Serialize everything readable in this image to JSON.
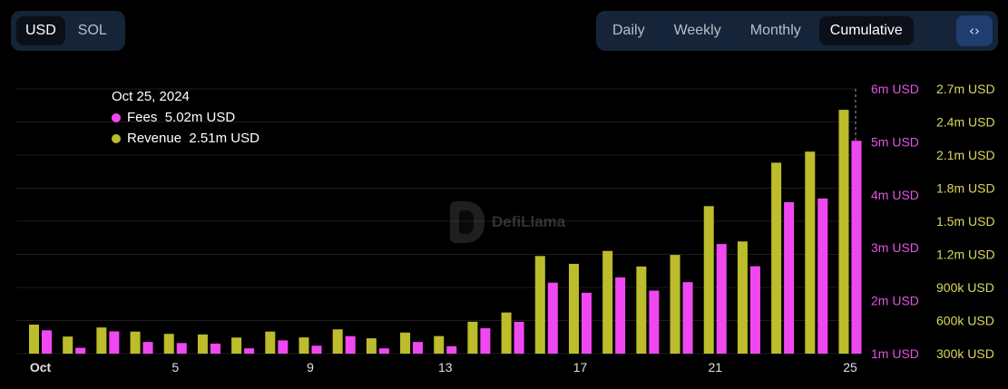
{
  "currency_toggle": {
    "options": [
      "USD",
      "SOL"
    ],
    "active": "USD"
  },
  "period_toggle": {
    "options": [
      "Daily",
      "Weekly",
      "Monthly",
      "Cumulative"
    ],
    "active": "Cumulative"
  },
  "embed_icon": "code-icon",
  "tooltip": {
    "date": "Oct 25, 2024",
    "fees_label": "Fees",
    "fees_value": "5.02m USD",
    "revenue_label": "Revenue",
    "revenue_value": "2.51m USD"
  },
  "watermark": {
    "text": "DefiLlama"
  },
  "colors": {
    "fees": "#f048f0",
    "revenue": "#bcbc2c",
    "background": "#000000",
    "grid": "#1c1c1c"
  },
  "chart_data": {
    "type": "bar",
    "categories": [
      "Oct 1",
      "Oct 2",
      "Oct 3",
      "Oct 4",
      "Oct 5",
      "Oct 6",
      "Oct 7",
      "Oct 8",
      "Oct 9",
      "Oct 10",
      "Oct 11",
      "Oct 12",
      "Oct 13",
      "Oct 14",
      "Oct 15",
      "Oct 16",
      "Oct 17",
      "Oct 18",
      "Oct 19",
      "Oct 20",
      "Oct 21",
      "Oct 22",
      "Oct 23",
      "Oct 24",
      "Oct 25"
    ],
    "x_tick_labels": [
      {
        "index": 1,
        "label": "Oct",
        "bold": true
      },
      {
        "index": 5,
        "label": "5"
      },
      {
        "index": 9,
        "label": "9"
      },
      {
        "index": 13,
        "label": "13"
      },
      {
        "index": 17,
        "label": "17"
      },
      {
        "index": 21,
        "label": "21"
      },
      {
        "index": 25,
        "label": "25"
      }
    ],
    "series": [
      {
        "name": "Fees",
        "color": "#f048f0",
        "axis": "left",
        "values": [
          1.44,
          1.11,
          1.42,
          1.22,
          1.2,
          1.19,
          1.1,
          1.25,
          1.15,
          1.33,
          1.1,
          1.22,
          1.14,
          1.48,
          1.6,
          2.34,
          2.15,
          2.44,
          2.19,
          2.35,
          3.07,
          2.65,
          3.86,
          3.93,
          5.02
        ]
      },
      {
        "name": "Revenue",
        "color": "#bcbc2c",
        "axis": "right",
        "values": [
          0.563,
          0.455,
          0.537,
          0.5,
          0.479,
          0.474,
          0.446,
          0.5,
          0.447,
          0.52,
          0.439,
          0.491,
          0.459,
          0.589,
          0.673,
          1.185,
          1.114,
          1.231,
          1.09,
          1.195,
          1.637,
          1.317,
          2.031,
          2.131,
          2.51
        ]
      }
    ],
    "y_left": {
      "min": 1,
      "max": 6,
      "ticks": [
        "1m USD",
        "2m USD",
        "3m USD",
        "4m USD",
        "5m USD",
        "6m USD"
      ],
      "color": "#e055e0"
    },
    "y_right": {
      "min": 0.3,
      "max": 2.7,
      "ticks": [
        "300k USD",
        "600k USD",
        "900k USD",
        "1.2m USD",
        "1.5m USD",
        "1.8m USD",
        "2.1m USD",
        "2.4m USD",
        "2.7m USD"
      ],
      "color": "#d8d860"
    },
    "grid": true,
    "legend": "tooltip"
  }
}
